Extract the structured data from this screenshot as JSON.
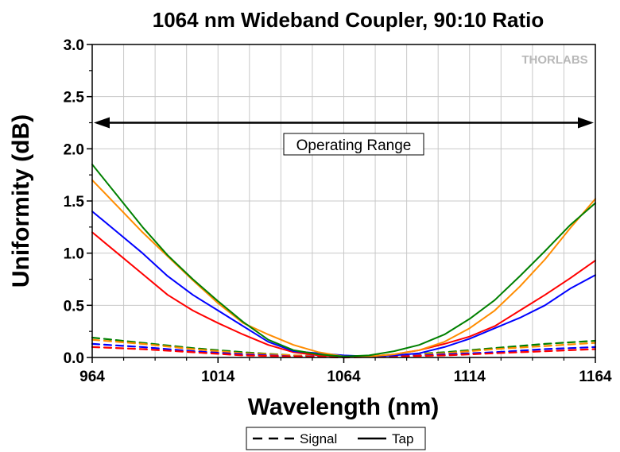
{
  "chart_data": {
    "type": "line",
    "title": "1064 nm Wideband Coupler, 90:10 Ratio",
    "xlabel": "Wavelength (nm)",
    "ylabel": "Uniformity (dB)",
    "xlim": [
      964,
      1164
    ],
    "ylim": [
      0.0,
      3.0
    ],
    "xticks": [
      "964",
      "1014",
      "1064",
      "1114",
      "1164"
    ],
    "yticks": [
      "0.0",
      "0.5",
      "1.0",
      "1.5",
      "2.0",
      "2.5",
      "3.0"
    ],
    "grid": true,
    "brand": "THORLABS",
    "annotation": {
      "text": "Operating Range",
      "x_start": 964,
      "x_end": 1164,
      "y": 2.25
    },
    "legend": {
      "placement": "bottom-center",
      "entries": [
        {
          "label": "Signal",
          "style": "dashed"
        },
        {
          "label": "Tap",
          "style": "solid"
        }
      ]
    },
    "series": [
      {
        "color": "#008000",
        "style": "solid",
        "x": [
          964,
          974,
          984,
          994,
          1004,
          1014,
          1024,
          1034,
          1044,
          1054,
          1064,
          1074,
          1084,
          1094,
          1104,
          1114,
          1124,
          1134,
          1144,
          1154,
          1164
        ],
        "y": [
          1.85,
          1.55,
          1.25,
          0.98,
          0.75,
          0.54,
          0.34,
          0.17,
          0.07,
          0.03,
          0.01,
          0.02,
          0.06,
          0.12,
          0.22,
          0.37,
          0.55,
          0.78,
          1.02,
          1.27,
          1.48
        ]
      },
      {
        "color": "#ff8c00",
        "style": "solid",
        "x": [
          964,
          974,
          984,
          994,
          1004,
          1014,
          1024,
          1034,
          1044,
          1054,
          1064,
          1074,
          1084,
          1094,
          1104,
          1114,
          1124,
          1134,
          1144,
          1154,
          1164
        ],
        "y": [
          1.7,
          1.45,
          1.2,
          0.97,
          0.74,
          0.52,
          0.33,
          0.22,
          0.12,
          0.05,
          0.01,
          0.01,
          0.03,
          0.07,
          0.15,
          0.28,
          0.45,
          0.68,
          0.94,
          1.24,
          1.52
        ]
      },
      {
        "color": "#0000ff",
        "style": "solid",
        "x": [
          964,
          974,
          984,
          994,
          1004,
          1014,
          1024,
          1034,
          1044,
          1054,
          1064,
          1074,
          1084,
          1094,
          1104,
          1114,
          1124,
          1134,
          1144,
          1154,
          1164
        ],
        "y": [
          1.4,
          1.2,
          1.0,
          0.78,
          0.6,
          0.45,
          0.3,
          0.15,
          0.06,
          0.04,
          0.02,
          0.01,
          0.02,
          0.04,
          0.1,
          0.18,
          0.28,
          0.38,
          0.5,
          0.66,
          0.79
        ]
      },
      {
        "color": "#ff0000",
        "style": "solid",
        "x": [
          964,
          974,
          984,
          994,
          1004,
          1014,
          1024,
          1034,
          1044,
          1054,
          1064,
          1074,
          1084,
          1094,
          1104,
          1114,
          1124,
          1134,
          1144,
          1154,
          1164
        ],
        "y": [
          1.2,
          1.0,
          0.8,
          0.6,
          0.45,
          0.33,
          0.22,
          0.12,
          0.05,
          0.02,
          0.01,
          0.01,
          0.03,
          0.07,
          0.13,
          0.2,
          0.3,
          0.45,
          0.6,
          0.76,
          0.93
        ]
      },
      {
        "color": "#008000",
        "style": "dashed",
        "x": [
          964,
          984,
          1004,
          1024,
          1044,
          1064,
          1084,
          1104,
          1124,
          1144,
          1164
        ],
        "y": [
          0.19,
          0.14,
          0.09,
          0.05,
          0.02,
          0.01,
          0.02,
          0.05,
          0.09,
          0.13,
          0.16
        ]
      },
      {
        "color": "#ff8c00",
        "style": "dashed",
        "x": [
          964,
          984,
          1004,
          1024,
          1044,
          1064,
          1084,
          1104,
          1124,
          1144,
          1164
        ],
        "y": [
          0.17,
          0.13,
          0.08,
          0.04,
          0.02,
          0.01,
          0.02,
          0.04,
          0.08,
          0.11,
          0.14
        ]
      },
      {
        "color": "#0000ff",
        "style": "dashed",
        "x": [
          964,
          984,
          1004,
          1024,
          1044,
          1064,
          1084,
          1104,
          1124,
          1144,
          1164
        ],
        "y": [
          0.13,
          0.1,
          0.06,
          0.03,
          0.01,
          0.01,
          0.01,
          0.03,
          0.05,
          0.08,
          0.1
        ]
      },
      {
        "color": "#ff0000",
        "style": "dashed",
        "x": [
          964,
          984,
          1004,
          1024,
          1044,
          1064,
          1084,
          1104,
          1124,
          1144,
          1164
        ],
        "y": [
          0.1,
          0.08,
          0.05,
          0.02,
          0.01,
          0.0,
          0.01,
          0.02,
          0.04,
          0.06,
          0.08
        ]
      }
    ]
  }
}
